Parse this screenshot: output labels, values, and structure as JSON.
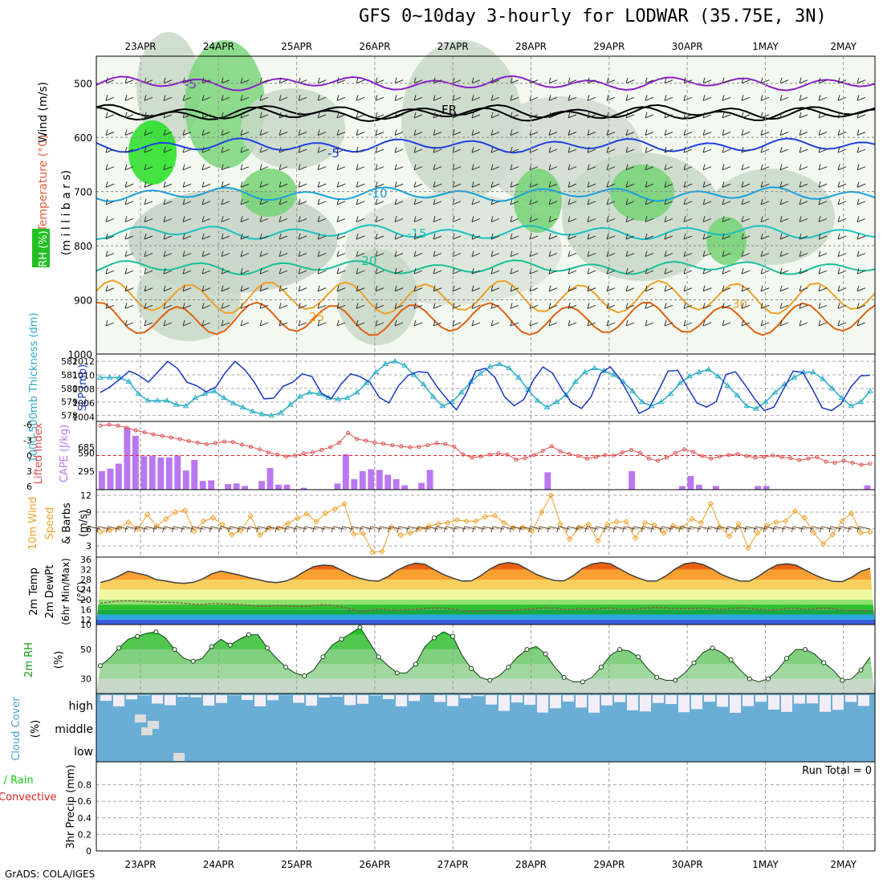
{
  "title": "GFS 0~10day 3-hourly for LODWAR (35.75E, 3N)",
  "footer": "GrADS: COLA/IGES",
  "chart_data": [
    {
      "panel": "upper-air",
      "type": "heatmap",
      "x_ticks": [
        "23APR",
        "24APR",
        "25APR",
        "26APR",
        "27APR",
        "28APR",
        "29APR",
        "30APR",
        "1MAY",
        "2MAY"
      ],
      "ylabel": "(m i l l i b a r s)",
      "y_ticks": [
        500,
        600,
        700,
        800,
        900,
        1000
      ],
      "ylim": [
        1000,
        450
      ],
      "legend_side": [
        "Wind (m/s)",
        "Temperature (°C)",
        "RH (%)"
      ],
      "isotherm_labels": [
        "-5",
        "FR",
        "-5",
        "-10",
        "-15",
        "-20",
        "25",
        "30"
      ],
      "grid": true
    },
    {
      "panel": "thickness-slp",
      "type": "line",
      "ylabel_left": "1000-500mb Thickness (dm)",
      "ylabel_right": "SLP (mb)",
      "thickness_ticks": [
        578,
        579,
        580,
        581,
        582
      ],
      "slp_ticks": [
        1004,
        1006,
        1008,
        1010,
        1012
      ],
      "series": [
        {
          "name": "1000-500mb Thickness (dm)",
          "color": "#2aaec8",
          "values": [
            580.8,
            580.8,
            580.8,
            580.5,
            579.6,
            579.1,
            579.1,
            579.1,
            578.8,
            578.7,
            579.3,
            579.6,
            579.8,
            579.3,
            578.9,
            578.6,
            578.3,
            578.1,
            578.0,
            578.2,
            578.8,
            579.4,
            579.7,
            579.6,
            579.3,
            579.2,
            579.3,
            579.7,
            580.4,
            581.2,
            581.8,
            582.0,
            581.7,
            581.0,
            580.3,
            579.4,
            578.7,
            579.0,
            579.7,
            580.5,
            581.1,
            581.6,
            581.8,
            581.5,
            580.8,
            579.9,
            579.1,
            578.6,
            579.0,
            579.5,
            580.5,
            581.2,
            581.5,
            581.3,
            581.0,
            580.5,
            579.8,
            579.0,
            578.7,
            579.0,
            579.6,
            580.4,
            580.9,
            581.2,
            581.4,
            580.9,
            580.2,
            579.5,
            578.7,
            578.5,
            579.0,
            579.7,
            580.3,
            580.8,
            581.2,
            581.2,
            580.7,
            580.0,
            579.3,
            578.7,
            579.0,
            579.8
          ]
        },
        {
          "name": "SLP (mb)",
          "color": "#1838c8",
          "values": [
            1007.5,
            1008.3,
            1009.4,
            1010.6,
            1010.0,
            1009.0,
            1010.5,
            1012.0,
            1011.0,
            1009.0,
            1008.5,
            1007.6,
            1008.3,
            1010.4,
            1012.0,
            1010.8,
            1009.0,
            1006.6,
            1006.7,
            1008.4,
            1009.0,
            1010.2,
            1009.8,
            1007.4,
            1006.6,
            1008.7,
            1010.2,
            1009.8,
            1009.0,
            1006.8,
            1006.0,
            1008.5,
            1010.0,
            1010.5,
            1010.4,
            1008.3,
            1006.6,
            1005.0,
            1007.3,
            1010.6,
            1011.0,
            1009.7,
            1006.9,
            1005.6,
            1006.5,
            1009.3,
            1011.2,
            1010.3,
            1007.9,
            1006.0,
            1005.2,
            1006.9,
            1010.3,
            1011.2,
            1009.5,
            1007.0,
            1004.5,
            1005.2,
            1007.8,
            1010.6,
            1010.7,
            1008.3,
            1006.0,
            1005.4,
            1006.2,
            1010.1,
            1010.5,
            1008.6,
            1006.6,
            1004.9,
            1005.4,
            1008.0,
            1010.6,
            1010.4,
            1008.0,
            1005.3,
            1004.9,
            1005.9,
            1008.3,
            1009.9,
            1010.0
          ]
        }
      ]
    },
    {
      "panel": "cape-li",
      "type": "bar",
      "ylabel_left": "Lifted Index",
      "ylabel_right": "CAPE (J/kg)",
      "li_ticks": [
        "-6",
        "-3",
        "0",
        "3",
        "6"
      ],
      "cape_ticks": [
        295,
        590,
        685
      ],
      "cape_values": [
        300,
        340,
        420,
        1000,
        870,
        540,
        550,
        520,
        520,
        550,
        310,
        480,
        140,
        150,
        0,
        90,
        100,
        60,
        0,
        140,
        350,
        80,
        80,
        0,
        30,
        0,
        0,
        0,
        100,
        570,
        170,
        300,
        330,
        320,
        240,
        170,
        70,
        0,
        110,
        320,
        0,
        0,
        0,
        0,
        0,
        0,
        0,
        0,
        0,
        0,
        0,
        0,
        0,
        280,
        0,
        0,
        0,
        0,
        0,
        0,
        0,
        0,
        0,
        300,
        0,
        0,
        0,
        0,
        0,
        60,
        220,
        80,
        0,
        60,
        0,
        0,
        0,
        0,
        60,
        60,
        0,
        0,
        0,
        0,
        0,
        0,
        0,
        0,
        0,
        0,
        0,
        70
      ],
      "li_values": [
        -5.8,
        -6.0,
        -5.8,
        -5.4,
        -4.9,
        -4.5,
        -4.1,
        -3.8,
        -3.5,
        -3.2,
        -2.8,
        -2.5,
        -2.2,
        -2.4,
        -2.7,
        -2.6,
        -2.1,
        -1.7,
        -1.2,
        -0.6,
        -0.2,
        0.2,
        0.0,
        -0.4,
        -0.6,
        -1.1,
        -1.6,
        -2.5,
        -4.4,
        -3.2,
        -2.9,
        -2.5,
        -2.3,
        -2.0,
        -1.8,
        -1.6,
        -1.7,
        -2.0,
        -2.4,
        -2.2,
        -1.7,
        -0.2,
        0.4,
        0.2,
        -0.2,
        -0.4,
        -0.2,
        0.8,
        0.5,
        -0.1,
        -0.9,
        -1.8,
        -0.8,
        -0.3,
        0.1,
        0.6,
        0.3,
        -0.1,
        0.0,
        -0.6,
        -1.1,
        -0.5,
        0.6,
        1.0,
        0.4,
        -0.5,
        -1.2,
        -0.7,
        0.1,
        0.6,
        0.2,
        -0.1,
        -0.3,
        0.1,
        0.4,
        0.3,
        0.0,
        0.3,
        0.5,
        0.9,
        0.6,
        0.3,
        1.2,
        1.4,
        1.0,
        1.4,
        1.8,
        1.6
      ]
    },
    {
      "panel": "10m-wind",
      "type": "line",
      "ylabel": "10m Wind Speed & Barbs (m/s)",
      "y_ticks": [
        3,
        6,
        9,
        12
      ],
      "ylim": [
        1,
        13
      ],
      "series": [
        {
          "name": "10m Wind Speed",
          "color": "#f0a028",
          "values": [
            5.5,
            5.8,
            6.2,
            7.2,
            6.0,
            8.6,
            6.5,
            7.8,
            9.0,
            9.3,
            5.6,
            7.4,
            8.0,
            6.8,
            5.0,
            5.7,
            8.3,
            4.9,
            6.2,
            6.1,
            7.0,
            7.9,
            8.7,
            7.3,
            8.8,
            9.6,
            10.5,
            5.1,
            5.2,
            1.9,
            2.0,
            6.4,
            4.9,
            5.3,
            6.0,
            6.5,
            6.9,
            7.1,
            7.6,
            7.4,
            7.4,
            8.2,
            8.4,
            7.1,
            6.2,
            6.3,
            5.6,
            9.0,
            12.0,
            6.9,
            4.2,
            6.3,
            6.8,
            3.9,
            6.8,
            7.3,
            7.3,
            4.4,
            7.1,
            6.7,
            5.3,
            6.6,
            6.3,
            7.8,
            7.1,
            10.5,
            6.4,
            4.7,
            6.9,
            2.6,
            5.3,
            6.6,
            7.2,
            7.4,
            9.2,
            8.0,
            5.3,
            3.3,
            5.0,
            7.4,
            8.8,
            5.3,
            5.5
          ]
        }
      ]
    },
    {
      "panel": "2m-temp",
      "type": "area",
      "ylabel": "2m Temp 2m DewPt (6hr Min/Max) (°C)",
      "y_ticks": [
        10,
        12,
        16,
        20,
        24,
        28,
        32,
        36
      ],
      "ylim": [
        10,
        37
      ],
      "series": [
        {
          "name": "2m Temp",
          "color": "#505050",
          "values": [
            26.8,
            27.8,
            29.4,
            31.3,
            30.5,
            29.7,
            28.0,
            27.5,
            26.8,
            26.5,
            26.9,
            28.2,
            30.3,
            31.4,
            30.6,
            29.8,
            28.8,
            28.0,
            27.1,
            26.8,
            27.4,
            28.9,
            31.2,
            33.2,
            33.8,
            33.6,
            31.8,
            29.8,
            28.5,
            27.6,
            27.4,
            29.2,
            31.7,
            33.5,
            34.6,
            34.1,
            32.0,
            30.0,
            28.6,
            27.4,
            27.5,
            29.5,
            32.2,
            34.1,
            34.8,
            34.2,
            32.2,
            30.1,
            28.7,
            27.6,
            27.5,
            29.6,
            32.5,
            34.2,
            34.8,
            34.3,
            32.3,
            30.2,
            28.6,
            27.4,
            27.5,
            29.5,
            32.3,
            34.3,
            34.8,
            34.0,
            32.2,
            30.0,
            28.5,
            27.4,
            27.4,
            29.4,
            32.0,
            33.9,
            34.3,
            33.8,
            31.8,
            29.9,
            28.4,
            27.3,
            27.2,
            28.9,
            31.3,
            32.5
          ]
        },
        {
          "name": "2m DewPt",
          "color": "#a05050",
          "values": [
            18.5,
            19.0,
            19.4,
            19.5,
            19.3,
            19.2,
            19.0,
            18.9,
            18.8,
            18.5,
            18.2,
            17.9,
            18.5,
            18.3,
            18.2,
            18.0,
            17.7,
            17.4,
            17.3,
            17.7,
            17.5,
            17.3,
            17.2,
            17.6,
            17.9,
            17.7,
            17.0,
            16.1,
            15.3,
            15.6,
            16.2,
            15.9,
            15.7,
            15.9,
            16.1,
            16.4,
            16.6,
            16.5,
            16.2,
            15.6,
            15.1,
            15.5,
            15.8,
            15.5,
            15.6,
            15.9,
            16.1,
            16.3,
            16.7,
            16.5,
            16.0,
            16.1,
            16.4,
            16.1,
            16.4,
            16.6,
            16.1,
            15.9,
            16.3,
            16.6,
            16.8,
            16.6,
            16.3,
            16.4,
            16.4,
            16.6,
            16.1,
            16.0,
            16.3,
            16.7,
            16.4,
            16.1,
            15.8,
            15.9,
            16.4,
            16.4,
            16.0,
            16.3,
            16.5,
            16.4,
            15.7,
            15.7,
            15.6,
            15.3
          ]
        }
      ]
    },
    {
      "panel": "2m-rh",
      "type": "area",
      "ylabel": "2m RH (%)",
      "y_ticks": [
        30,
        50
      ],
      "ylim": [
        20,
        67
      ],
      "series": [
        {
          "name": "2m RH",
          "color": "#14c814",
          "values": [
            39,
            44,
            51,
            57,
            59,
            61,
            62,
            58,
            50,
            44,
            42,
            44,
            52,
            57,
            53,
            57,
            60,
            60,
            51,
            44,
            38,
            34,
            32,
            36,
            45,
            53,
            57,
            61,
            65,
            55,
            45,
            39,
            34,
            34,
            40,
            52,
            58,
            62,
            59,
            46,
            37,
            31,
            29,
            32,
            38,
            45,
            50,
            52,
            47,
            38,
            31,
            28,
            28,
            31,
            38,
            46,
            50,
            49,
            45,
            37,
            31,
            29,
            29,
            34,
            41,
            48,
            51,
            48,
            43,
            36,
            30,
            28,
            30,
            36,
            44,
            50,
            50,
            47,
            41,
            36,
            29,
            30,
            36,
            45
          ]
        }
      ]
    },
    {
      "panel": "cloud-cover",
      "type": "bar",
      "ylabel": "Cloud Cover (%)",
      "levels": [
        "high",
        "middle",
        "low"
      ]
    },
    {
      "panel": "precip",
      "type": "bar",
      "ylabel": "3hr Precip (mm)",
      "legend": [
        "Total / Rain",
        "Convective"
      ],
      "y_ticks": [
        "0",
        "0.2",
        "0.4",
        "0.6",
        "0.8"
      ],
      "ylim": [
        0,
        1
      ],
      "annotation": "Run Total = 0",
      "values": []
    }
  ]
}
